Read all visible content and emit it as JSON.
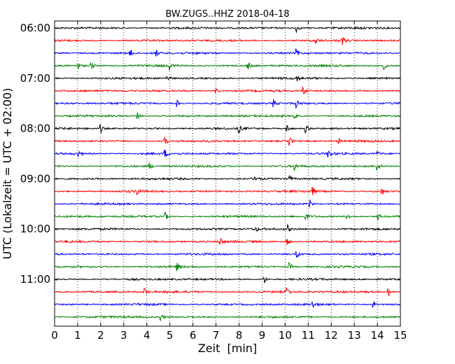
{
  "chart_data": {
    "type": "line",
    "title": "BW.ZUGS..HHZ 2018-04-18",
    "xlabel": "Zeit  [min]",
    "ylabel": "UTC (Lokalzeit = UTC + 02:00)",
    "xlim": [
      0,
      15
    ],
    "x_ticks": [
      0,
      1,
      2,
      3,
      4,
      5,
      6,
      7,
      8,
      9,
      10,
      11,
      12,
      13,
      14,
      15
    ],
    "y_tick_labels": [
      "06:00",
      "07:00",
      "08:00",
      "09:00",
      "10:00",
      "11:00"
    ],
    "trace_interval_min": 15,
    "trace_colors": [
      "#000000",
      "#ff0000",
      "#0000ff",
      "#008000"
    ],
    "grid": "vertical dotted",
    "traces": [
      {
        "label": "06:00",
        "events_min": [
          10.5
        ]
      },
      {
        "label": "06:15",
        "events_min": [
          11.3,
          12.5
        ]
      },
      {
        "label": "06:30",
        "events_min": [
          3.3,
          4.4,
          10.5
        ]
      },
      {
        "label": "06:45",
        "events_min": [
          1.0,
          1.6,
          5.0,
          8.4,
          14.3
        ]
      },
      {
        "label": "07:00",
        "events_min": [
          4.9,
          10.5
        ]
      },
      {
        "label": "07:15",
        "events_min": [
          7.0,
          10.8
        ]
      },
      {
        "label": "07:30",
        "events_min": [
          5.3,
          9.5,
          10.5
        ]
      },
      {
        "label": "07:45",
        "events_min": [
          3.6,
          10.4
        ]
      },
      {
        "label": "08:00",
        "events_min": [
          2.0,
          8.0,
          10.1,
          10.9
        ]
      },
      {
        "label": "08:15",
        "events_min": [
          4.8,
          10.2,
          12.3
        ]
      },
      {
        "label": "08:30",
        "events_min": [
          1.0,
          4.8,
          11.9,
          14.0
        ]
      },
      {
        "label": "08:45",
        "events_min": [
          4.1,
          10.4,
          14.0
        ]
      },
      {
        "label": "09:00",
        "events_min": [
          8.7,
          10.2
        ]
      },
      {
        "label": "09:15",
        "events_min": [
          3.6,
          11.2,
          14.2
        ]
      },
      {
        "label": "09:30",
        "events_min": [
          11.1
        ]
      },
      {
        "label": "09:45",
        "events_min": [
          4.8,
          10.9,
          12.7,
          14.0
        ]
      },
      {
        "label": "10:00",
        "events_min": [
          8.7,
          10.1
        ]
      },
      {
        "label": "10:15",
        "events_min": [
          7.2,
          10.1
        ]
      },
      {
        "label": "10:30",
        "events_min": [
          10.5
        ]
      },
      {
        "label": "10:45",
        "events_min": [
          5.3,
          10.2
        ]
      },
      {
        "label": "11:00",
        "events_min": [
          9.1
        ]
      },
      {
        "label": "11:15",
        "events_min": [
          3.9,
          10.1,
          14.5
        ]
      },
      {
        "label": "11:30",
        "events_min": [
          11.2,
          13.8
        ]
      },
      {
        "label": "11:45",
        "events_min": [
          4.6
        ]
      }
    ]
  }
}
